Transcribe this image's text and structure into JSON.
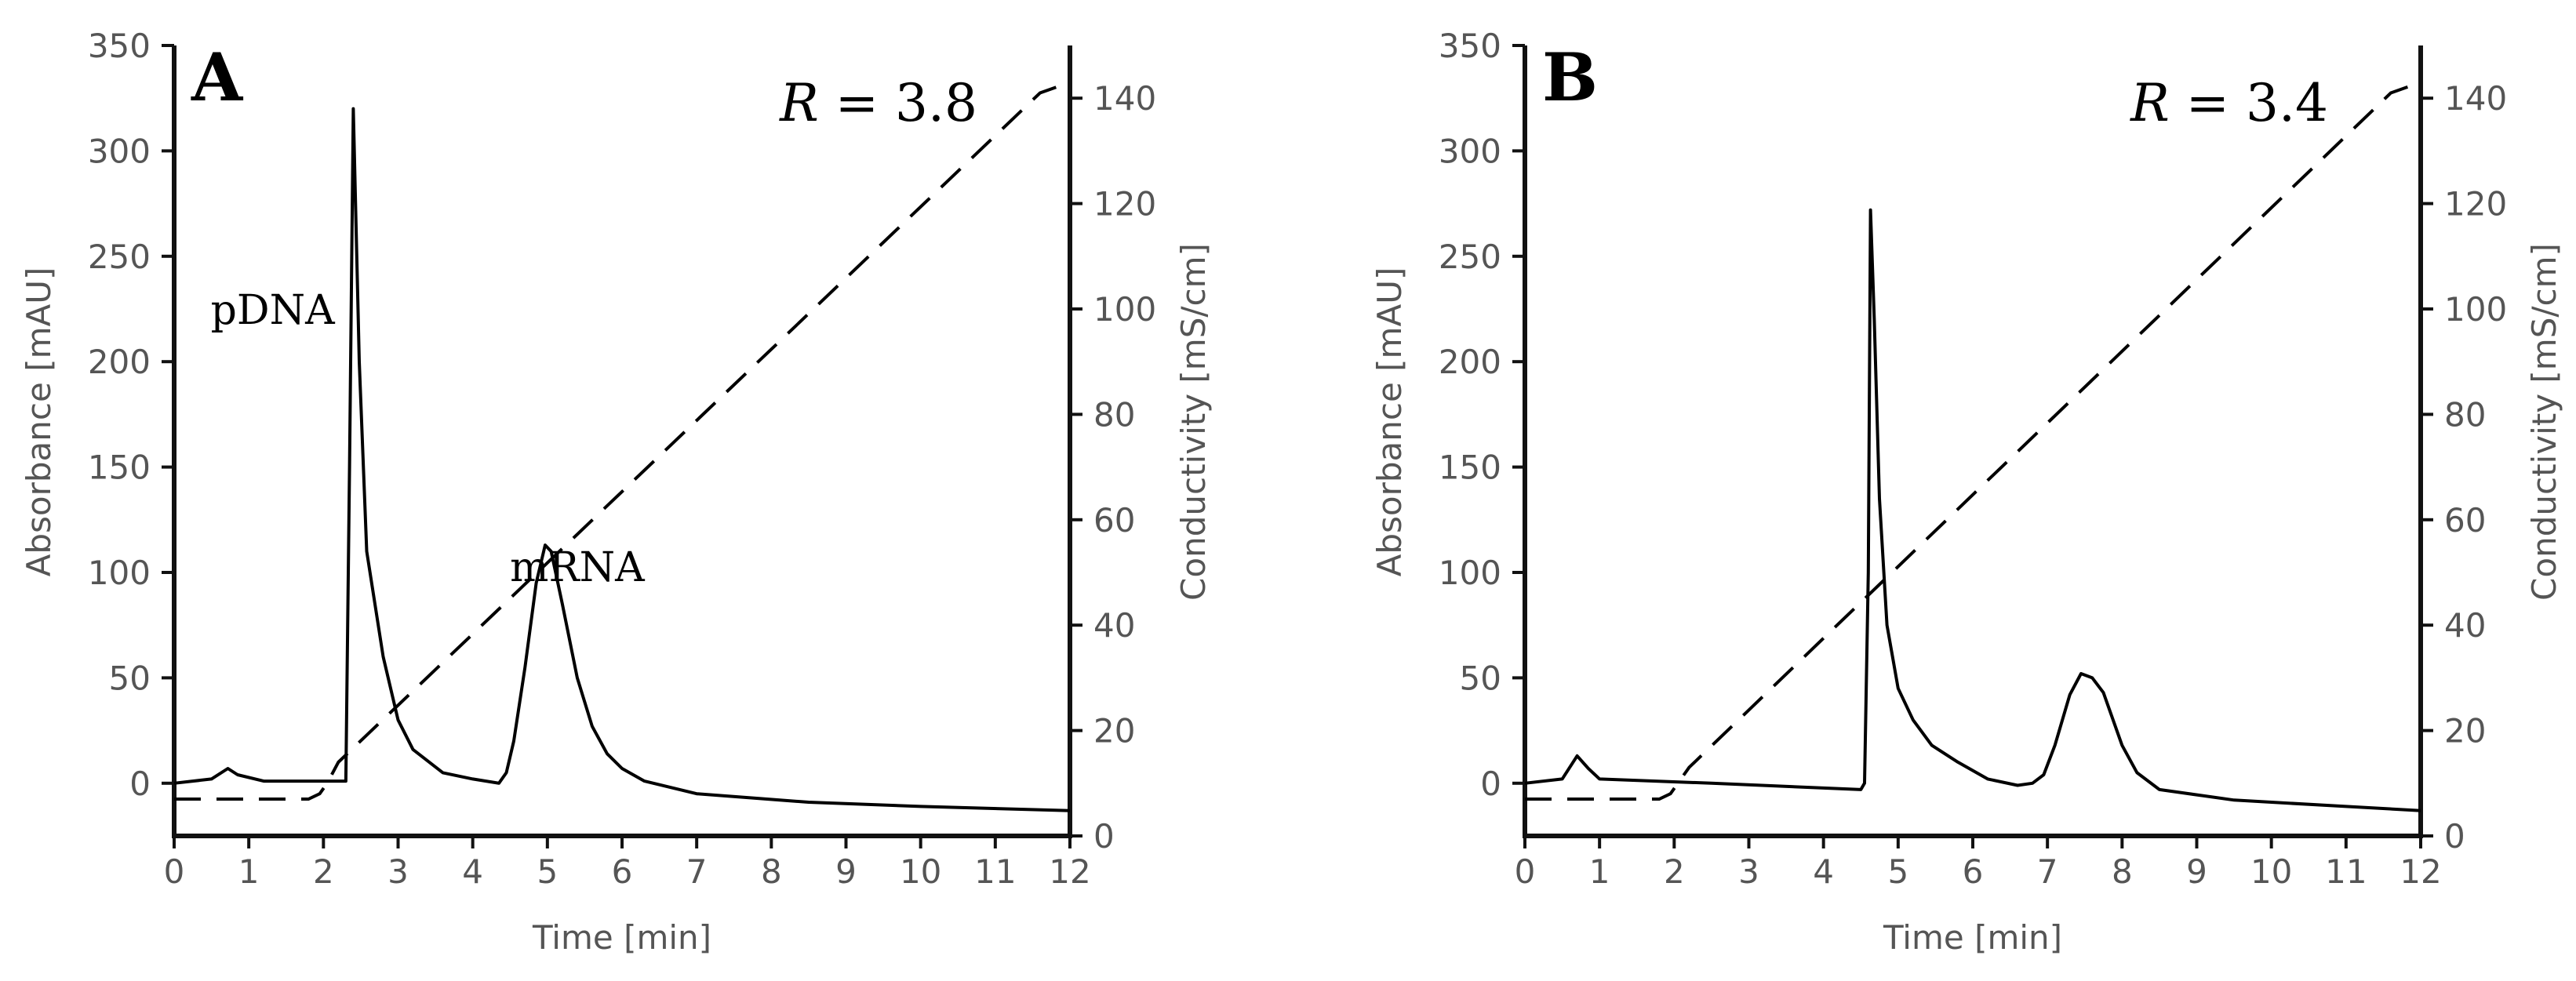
{
  "chart_data": [
    {
      "type": "line",
      "panel": "A",
      "annotation_r": {
        "symbol": "R",
        "text": " = 3.8"
      },
      "xlabel": "Time [min]",
      "ylabel": "Absorbance [mAU]",
      "y2label": "Conductivity [mS/cm]",
      "xlim": [
        0,
        12
      ],
      "ylim": [
        -25,
        350
      ],
      "y2lim": [
        0,
        150
      ],
      "x_ticks": [
        "0",
        "1",
        "2",
        "3",
        "4",
        "5",
        "6",
        "7",
        "8",
        "9",
        "10",
        "11",
        "12"
      ],
      "y_ticks": [
        "0",
        "50",
        "100",
        "150",
        "200",
        "250",
        "300",
        "350"
      ],
      "y2_ticks": [
        "0",
        "20",
        "40",
        "60",
        "80",
        "100",
        "120",
        "140"
      ],
      "peak_labels": [
        {
          "text": "pDNA",
          "x": 1.32,
          "y": 218
        },
        {
          "text": "mRNA",
          "x": 5.4,
          "y": 96
        }
      ],
      "series": [
        {
          "axis": "left",
          "style": "solid",
          "x": [
            0,
            0.5,
            0.72,
            0.85,
            1.2,
            2.3,
            2.35,
            2.4,
            2.48,
            2.58,
            2.8,
            3.0,
            3.2,
            3.6,
            4.0,
            4.35,
            4.45,
            4.55,
            4.7,
            4.85,
            4.97,
            5.05,
            5.2,
            5.4,
            5.6,
            5.8,
            6.0,
            6.3,
            7.0,
            8.5,
            10.0,
            12.0
          ],
          "y": [
            0,
            2,
            7,
            4,
            1,
            1,
            150,
            320,
            200,
            110,
            60,
            30,
            16,
            5,
            2,
            0,
            5,
            20,
            55,
            95,
            113,
            110,
            85,
            50,
            27,
            14,
            7,
            1,
            -5,
            -9,
            -11,
            -13
          ]
        },
        {
          "axis": "right",
          "style": "dashed",
          "x": [
            0,
            1.8,
            1.95,
            2.05,
            2.2,
            11.6,
            12.0
          ],
          "y": [
            7,
            7,
            8,
            10,
            14,
            141,
            143
          ]
        }
      ]
    },
    {
      "type": "line",
      "panel": "B",
      "annotation_r": {
        "symbol": "R",
        "text": " = 3.4"
      },
      "xlabel": "Time [min]",
      "ylabel": "Absorbance [mAU]",
      "y2label": "Conductivity [mS/cm]",
      "xlim": [
        0,
        12
      ],
      "ylim": [
        -25,
        350
      ],
      "y2lim": [
        0,
        150
      ],
      "x_ticks": [
        "0",
        "1",
        "2",
        "3",
        "4",
        "5",
        "6",
        "7",
        "8",
        "9",
        "10",
        "11",
        "12"
      ],
      "y_ticks": [
        "0",
        "50",
        "100",
        "150",
        "200",
        "250",
        "300",
        "350"
      ],
      "y2_ticks": [
        "0",
        "20",
        "40",
        "60",
        "80",
        "100",
        "120",
        "140"
      ],
      "peak_labels": [],
      "series": [
        {
          "axis": "left",
          "style": "solid",
          "x": [
            0,
            0.5,
            0.7,
            0.85,
            1.0,
            2.5,
            4.5,
            4.55,
            4.6,
            4.63,
            4.68,
            4.75,
            4.85,
            5.0,
            5.2,
            5.45,
            5.8,
            6.2,
            6.6,
            6.8,
            6.95,
            7.1,
            7.3,
            7.45,
            7.6,
            7.75,
            8.0,
            8.2,
            8.5,
            9.5,
            11.0,
            12.0
          ],
          "y": [
            0,
            2,
            13,
            7,
            2,
            0,
            -3,
            0,
            100,
            272,
            220,
            135,
            75,
            45,
            30,
            18,
            10,
            2,
            -1,
            0,
            4,
            18,
            42,
            52,
            50,
            43,
            18,
            5,
            -3,
            -8,
            -11,
            -13
          ]
        },
        {
          "axis": "right",
          "style": "dashed",
          "x": [
            0,
            1.8,
            1.95,
            2.05,
            2.2,
            11.6,
            12.0
          ],
          "y": [
            7,
            7,
            8,
            10,
            13,
            141,
            143
          ]
        }
      ]
    }
  ]
}
